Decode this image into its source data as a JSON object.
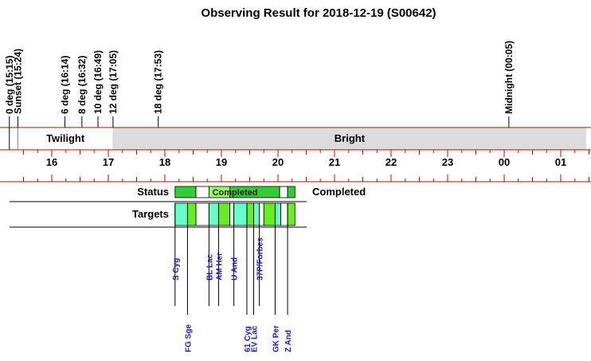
{
  "title": "Observing Result for 2018-12-19 (S00642)",
  "chart_data": {
    "type": "timeline",
    "title": "Observing Result for 2018-12-19 (S00642)",
    "x_ticks": [
      "16",
      "17",
      "18",
      "19",
      "20",
      "21",
      "22",
      "23",
      "00",
      "01"
    ],
    "x_range_hours": [
      15.25,
      25.45
    ],
    "events": [
      {
        "label": "0 deg (15:15)",
        "hour": 15.25
      },
      {
        "label": "Sunset (15:24)",
        "hour": 15.4
      },
      {
        "label": "6 deg (16:14)",
        "hour": 16.233
      },
      {
        "label": "8 deg (16:32)",
        "hour": 16.533
      },
      {
        "label": "10 deg (16:49)",
        "hour": 16.817
      },
      {
        "label": "12 deg (17:05)",
        "hour": 17.083
      },
      {
        "label": "18 deg (17:53)",
        "hour": 17.883
      },
      {
        "label": "Midnight (00:05)",
        "hour": 24.083
      }
    ],
    "bands": [
      {
        "label": "Twilight",
        "start": 15.4,
        "end": 17.083,
        "color": "#ffffff"
      },
      {
        "label": "Bright",
        "start": 17.083,
        "end": 25.45,
        "color": "#dcdcdc"
      }
    ],
    "rows": [
      "Status",
      "Targets"
    ],
    "status_label": "Completed",
    "status_summary": "Completed",
    "status_segments": [
      {
        "start": 18.18,
        "end": 18.55,
        "color": "#33cc33"
      },
      {
        "start": 18.55,
        "end": 18.78,
        "color": "#ffffff"
      },
      {
        "start": 18.78,
        "end": 19.15,
        "color": "#99ff66"
      },
      {
        "start": 19.15,
        "end": 20.03,
        "color": "#33cc33"
      },
      {
        "start": 20.03,
        "end": 20.17,
        "color": "#ffffff"
      },
      {
        "start": 20.17,
        "end": 20.3,
        "color": "#33cc33"
      }
    ],
    "target_segments": [
      {
        "start": 18.18,
        "end": 18.4,
        "color": "#66ffcc"
      },
      {
        "start": 18.4,
        "end": 18.55,
        "color": "#66ee22"
      },
      {
        "start": 18.55,
        "end": 18.78,
        "color": "#ffffff"
      },
      {
        "start": 18.78,
        "end": 18.95,
        "color": "#66ffcc"
      },
      {
        "start": 18.95,
        "end": 19.15,
        "color": "#66ee22"
      },
      {
        "start": 19.15,
        "end": 19.22,
        "color": "#ffffff"
      },
      {
        "start": 19.22,
        "end": 19.45,
        "color": "#66ffcc"
      },
      {
        "start": 19.45,
        "end": 19.57,
        "color": "#66ee22"
      },
      {
        "start": 19.57,
        "end": 19.67,
        "color": "#66ffcc"
      },
      {
        "start": 19.67,
        "end": 19.75,
        "color": "#ffffff"
      },
      {
        "start": 19.75,
        "end": 19.95,
        "color": "#66ee22"
      },
      {
        "start": 19.95,
        "end": 20.05,
        "color": "#66ffcc"
      },
      {
        "start": 20.05,
        "end": 20.17,
        "color": "#ffffff"
      },
      {
        "start": 20.17,
        "end": 20.3,
        "color": "#66ee22"
      }
    ],
    "targets": [
      {
        "name": "S Cyg",
        "hour": 18.18,
        "label_pos": "top"
      },
      {
        "name": "FG Sge",
        "hour": 18.4,
        "label_pos": "bottom"
      },
      {
        "name": "BL Lac",
        "hour": 18.78,
        "label_pos": "top"
      },
      {
        "name": "AM Her",
        "hour": 18.95,
        "label_pos": "top"
      },
      {
        "name": "U And",
        "hour": 19.22,
        "label_pos": "top"
      },
      {
        "name": "61 Cyg",
        "hour": 19.45,
        "label_pos": "bottom"
      },
      {
        "name": "EV Lac",
        "hour": 19.57,
        "label_pos": "bottom"
      },
      {
        "name": "37P/Forbes",
        "hour": 19.67,
        "label_pos": "top"
      },
      {
        "name": "GK Per",
        "hour": 19.95,
        "label_pos": "bottom"
      },
      {
        "name": "Z And",
        "hour": 20.17,
        "label_pos": "bottom"
      }
    ],
    "colors": {
      "axis": "#cc0000",
      "twilight": "#ffffff",
      "bright": "#dcdcdc",
      "target_text": "#1a1ab0"
    }
  }
}
